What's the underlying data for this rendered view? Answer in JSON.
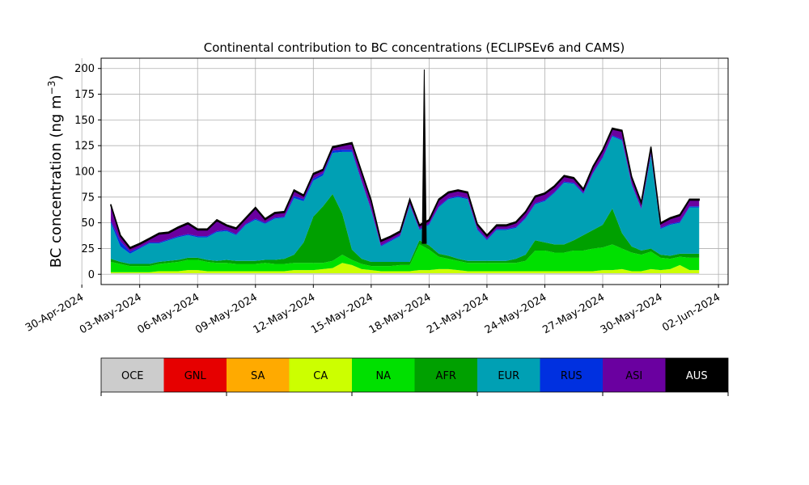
{
  "chart_data": {
    "type": "area",
    "title": "Continental contribution to BC concentrations (ECLIPSEv6 and CAMS)",
    "ylabel": "BC concentration (ng m⁻³)",
    "ylabel_base": "BC concentration (ng m",
    "ylabel_exp": "−3",
    "ylabel_close": ")",
    "xlabel": "",
    "ylim": [
      -10,
      210
    ],
    "xlim": [
      "2024-05-01T00:00",
      "2024-06-02T12:00"
    ],
    "grid": true,
    "stacked": true,
    "y_ticks": [
      0,
      25,
      50,
      75,
      100,
      125,
      150,
      175,
      200
    ],
    "x_ticks": [
      {
        "date": "2024-04-30",
        "label": "30-Apr-2024"
      },
      {
        "date": "2024-05-03",
        "label": "03-May-2024"
      },
      {
        "date": "2024-05-06",
        "label": "06-May-2024"
      },
      {
        "date": "2024-05-09",
        "label": "09-May-2024"
      },
      {
        "date": "2024-05-12",
        "label": "12-May-2024"
      },
      {
        "date": "2024-05-15",
        "label": "15-May-2024"
      },
      {
        "date": "2024-05-18",
        "label": "18-May-2024"
      },
      {
        "date": "2024-05-21",
        "label": "21-May-2024"
      },
      {
        "date": "2024-05-24",
        "label": "24-May-2024"
      },
      {
        "date": "2024-05-27",
        "label": "27-May-2024"
      },
      {
        "date": "2024-05-30",
        "label": "30-May-2024"
      },
      {
        "date": "2024-06-02",
        "label": "02-Jun-2024"
      }
    ],
    "legend": [
      {
        "name": "OCE",
        "color": "#cccccc",
        "text_color": "#000000"
      },
      {
        "name": "GNL",
        "color": "#e60000",
        "text_color": "#000000"
      },
      {
        "name": "SA",
        "color": "#ffaa00",
        "text_color": "#000000"
      },
      {
        "name": "CA",
        "color": "#ccff00",
        "text_color": "#000000"
      },
      {
        "name": "NA",
        "color": "#00e000",
        "text_color": "#000000"
      },
      {
        "name": "AFR",
        "color": "#00a000",
        "text_color": "#000000"
      },
      {
        "name": "EUR",
        "color": "#00a0b4",
        "text_color": "#000000"
      },
      {
        "name": "RUS",
        "color": "#0030e0",
        "text_color": "#000000"
      },
      {
        "name": "ASI",
        "color": "#6a00a0",
        "text_color": "#000000"
      },
      {
        "name": "AUS",
        "color": "#000000",
        "text_color": "#ffffff"
      }
    ],
    "series_order": [
      "OCE",
      "SA",
      "CA",
      "NA",
      "AFR",
      "EUR",
      "RUS",
      "ASI",
      "AUS"
    ],
    "x": [
      "2024-05-01T12:00",
      "2024-05-02T00:00",
      "2024-05-02T12:00",
      "2024-05-03T00:00",
      "2024-05-03T12:00",
      "2024-05-04T00:00",
      "2024-05-04T12:00",
      "2024-05-05T00:00",
      "2024-05-05T12:00",
      "2024-05-06T00:00",
      "2024-05-06T12:00",
      "2024-05-07T00:00",
      "2024-05-07T12:00",
      "2024-05-08T00:00",
      "2024-05-08T12:00",
      "2024-05-09T00:00",
      "2024-05-09T12:00",
      "2024-05-10T00:00",
      "2024-05-10T12:00",
      "2024-05-11T00:00",
      "2024-05-11T12:00",
      "2024-05-12T00:00",
      "2024-05-12T12:00",
      "2024-05-13T00:00",
      "2024-05-13T12:00",
      "2024-05-14T00:00",
      "2024-05-14T12:00",
      "2024-05-15T00:00",
      "2024-05-15T12:00",
      "2024-05-16T00:00",
      "2024-05-16T12:00",
      "2024-05-17T00:00",
      "2024-05-17T12:00",
      "2024-05-18T00:00",
      "2024-05-18T12:00",
      "2024-05-19T00:00",
      "2024-05-19T12:00",
      "2024-05-20T00:00",
      "2024-05-20T12:00",
      "2024-05-21T00:00",
      "2024-05-21T12:00",
      "2024-05-22T00:00",
      "2024-05-22T12:00",
      "2024-05-23T00:00",
      "2024-05-23T12:00",
      "2024-05-24T00:00",
      "2024-05-24T12:00",
      "2024-05-25T00:00",
      "2024-05-25T12:00",
      "2024-05-26T00:00",
      "2024-05-26T12:00",
      "2024-05-27T00:00",
      "2024-05-27T12:00",
      "2024-05-28T00:00",
      "2024-05-28T12:00",
      "2024-05-29T00:00",
      "2024-05-29T12:00",
      "2024-05-30T00:00",
      "2024-05-30T12:00",
      "2024-05-31T00:00",
      "2024-05-31T12:00",
      "2024-06-01T00:00"
    ],
    "series": [
      {
        "name": "OCE",
        "values": [
          1,
          1,
          1,
          1,
          1,
          1,
          1,
          1,
          1,
          1,
          1,
          1,
          1,
          1,
          1,
          1,
          1,
          1,
          1,
          1,
          1,
          1,
          1,
          1,
          1,
          1,
          1,
          1,
          1,
          1,
          1,
          1,
          1,
          1,
          1,
          1,
          1,
          1,
          1,
          1,
          1,
          1,
          1,
          1,
          1,
          1,
          1,
          1,
          1,
          1,
          1,
          1,
          1,
          1,
          1,
          1,
          1,
          1,
          1,
          1,
          1,
          1
        ]
      },
      {
        "name": "SA",
        "values": [
          0,
          0,
          0,
          0,
          0,
          0,
          0,
          0,
          0,
          0,
          0,
          0,
          0,
          0,
          0,
          0,
          0,
          0,
          0,
          0,
          0,
          0,
          0,
          0,
          0,
          0,
          0,
          0,
          0,
          0,
          0,
          0,
          0,
          0,
          0,
          0,
          0,
          0,
          0,
          0,
          0,
          0,
          0,
          0,
          0,
          0,
          0,
          0,
          0,
          0,
          0,
          0,
          0,
          0,
          0,
          0,
          0,
          0,
          0,
          0,
          0,
          0
        ]
      },
      {
        "name": "CA",
        "values": [
          1,
          1,
          1,
          1,
          1,
          2,
          2,
          2,
          3,
          3,
          2,
          2,
          2,
          2,
          2,
          2,
          2,
          2,
          2,
          3,
          3,
          3,
          4,
          5,
          10,
          8,
          4,
          3,
          2,
          2,
          2,
          2,
          3,
          3,
          4,
          4,
          3,
          2,
          2,
          2,
          2,
          2,
          2,
          2,
          2,
          2,
          2,
          2,
          2,
          2,
          2,
          3,
          3,
          4,
          2,
          2,
          4,
          3,
          4,
          8,
          3,
          3
        ]
      },
      {
        "name": "NA",
        "values": [
          10,
          8,
          6,
          6,
          6,
          7,
          8,
          9,
          10,
          10,
          9,
          8,
          8,
          7,
          7,
          7,
          8,
          7,
          7,
          7,
          7,
          7,
          6,
          7,
          8,
          5,
          5,
          4,
          5,
          5,
          6,
          6,
          25,
          20,
          12,
          10,
          9,
          8,
          8,
          8,
          8,
          8,
          8,
          10,
          20,
          20,
          18,
          18,
          20,
          20,
          22,
          22,
          25,
          20,
          18,
          16,
          17,
          12,
          10,
          8,
          12,
          12
        ]
      },
      {
        "name": "AFR",
        "values": [
          3,
          2,
          2,
          2,
          2,
          2,
          2,
          2,
          2,
          2,
          2,
          2,
          3,
          3,
          3,
          3,
          3,
          4,
          5,
          8,
          20,
          45,
          55,
          65,
          40,
          10,
          5,
          4,
          4,
          4,
          3,
          3,
          4,
          4,
          3,
          3,
          2,
          2,
          2,
          2,
          2,
          2,
          4,
          6,
          10,
          8,
          8,
          8,
          10,
          15,
          18,
          22,
          35,
          15,
          6,
          4,
          3,
          3,
          3,
          3,
          4,
          4
        ]
      },
      {
        "name": "EUR",
        "values": [
          35,
          15,
          10,
          15,
          20,
          18,
          20,
          22,
          22,
          20,
          22,
          28,
          28,
          25,
          35,
          40,
          35,
          40,
          40,
          55,
          40,
          35,
          30,
          40,
          60,
          95,
          75,
          50,
          15,
          20,
          25,
          55,
          10,
          20,
          45,
          55,
          60,
          60,
          30,
          20,
          30,
          30,
          30,
          35,
          35,
          40,
          50,
          60,
          55,
          40,
          55,
          65,
          70,
          90,
          60,
          40,
          90,
          25,
          30,
          30,
          45,
          45
        ]
      },
      {
        "name": "RUS",
        "values": [
          2,
          5,
          2,
          1,
          1,
          1,
          1,
          1,
          1,
          1,
          1,
          1,
          1,
          1,
          1,
          1,
          1,
          1,
          1,
          2,
          2,
          2,
          2,
          2,
          2,
          2,
          1,
          1,
          1,
          1,
          1,
          1,
          1,
          1,
          1,
          1,
          1,
          1,
          1,
          1,
          1,
          1,
          1,
          1,
          1,
          1,
          1,
          1,
          1,
          1,
          1,
          1,
          1,
          1,
          1,
          1,
          2,
          1,
          1,
          1,
          1,
          1
        ]
      },
      {
        "name": "ASI",
        "values": [
          15,
          5,
          3,
          3,
          3,
          8,
          6,
          8,
          10,
          6,
          6,
          10,
          4,
          5,
          5,
          10,
          3,
          4,
          4,
          5,
          3,
          4,
          3,
          3,
          4,
          6,
          8,
          8,
          4,
          3,
          3,
          4,
          3,
          3,
          6,
          5,
          5,
          5,
          4,
          3,
          3,
          3,
          4,
          5,
          6,
          6,
          5,
          5,
          4,
          3,
          5,
          6,
          6,
          8,
          6,
          5,
          6,
          4,
          5,
          6,
          6,
          6
        ]
      },
      {
        "name": "AUS",
        "values": [
          1,
          1,
          1,
          1,
          1,
          1,
          1,
          1,
          1,
          1,
          1,
          1,
          1,
          1,
          1,
          1,
          1,
          1,
          1,
          1,
          1,
          1,
          1,
          1,
          1,
          1,
          1,
          1,
          1,
          1,
          1,
          1,
          1,
          1,
          1,
          1,
          1,
          1,
          1,
          1,
          1,
          1,
          1,
          1,
          1,
          1,
          1,
          1,
          1,
          1,
          1,
          1,
          1,
          1,
          1,
          1,
          1,
          1,
          1,
          1,
          1,
          1
        ]
      }
    ],
    "spikes": [
      {
        "x": "2024-05-17T18:00",
        "value": 199,
        "base_series_total": 30
      }
    ]
  }
}
